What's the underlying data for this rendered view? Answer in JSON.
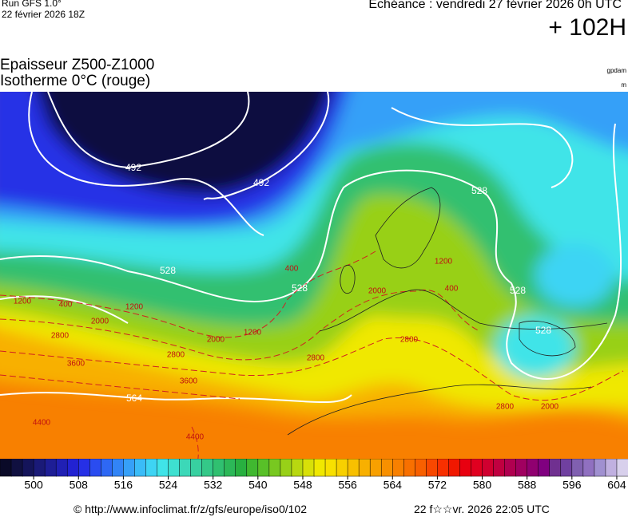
{
  "header": {
    "run": "Run GFS 1.0°",
    "run_date": "22 février 2026 18Z",
    "valid": "Echéance : vendredi 27 février 2026 0h UTC",
    "lead": "+ 102H",
    "title": "Epaisseur Z500-Z1000",
    "subtitle": "Isotherme 0°C (rouge)",
    "unit_thickness": "gpdam",
    "unit_isotherm": "m"
  },
  "map": {
    "thickness_labels": [
      492,
      492,
      528,
      528,
      528,
      528,
      528,
      564
    ],
    "isotherm_labels": [
      400,
      1200,
      400,
      1200,
      2000,
      2800,
      3600,
      2800,
      3600,
      4400,
      4400,
      1200,
      2000,
      2800,
      2000,
      1200,
      400,
      2800,
      2800,
      2000
    ]
  },
  "colorbar": {
    "range": [
      494,
      606
    ],
    "ticks": [
      500,
      508,
      516,
      524,
      532,
      540,
      548,
      556,
      564,
      572,
      580,
      588,
      596,
      604
    ],
    "colors": [
      "#0a0a28",
      "#101040",
      "#14145a",
      "#1a1a78",
      "#1e1e96",
      "#2020b4",
      "#2222d2",
      "#2630e6",
      "#2a4cf0",
      "#2e68f4",
      "#3284f6",
      "#36a0f8",
      "#3abcf8",
      "#3ed4f4",
      "#40e4e8",
      "#3ee0d0",
      "#3cd8b8",
      "#38d0a0",
      "#34c888",
      "#30c070",
      "#2cb858",
      "#28b040",
      "#40b830",
      "#58c028",
      "#78c820",
      "#98d018",
      "#b8d810",
      "#d8e008",
      "#f0e800",
      "#f8e000",
      "#f8d000",
      "#f8c000",
      "#f8b000",
      "#f8a000",
      "#f89000",
      "#f88000",
      "#f87000",
      "#f86000",
      "#f84800",
      "#f83000",
      "#f01800",
      "#e80010",
      "#e00020",
      "#d00030",
      "#c00040",
      "#b00050",
      "#a00060",
      "#900070",
      "#800080",
      "#703090",
      "#7040a0",
      "#8060b0",
      "#9070c0",
      "#a090d0",
      "#c0b0e0",
      "#d8d0ec"
    ]
  },
  "footer": {
    "source": "© http://www.infoclimat.fr/z/gfs/europe/iso0/102",
    "generated": "22 f☆☆vr. 2026 22:05 UTC"
  }
}
